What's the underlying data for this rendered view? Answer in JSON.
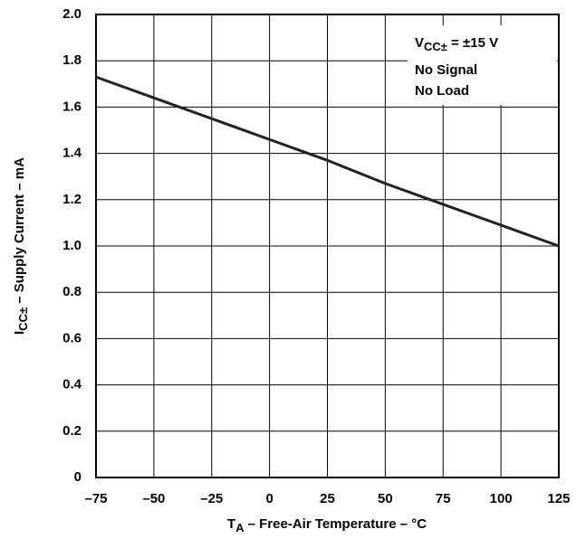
{
  "chart_data": {
    "type": "line",
    "xlabel": {
      "main": "T",
      "sub": "A",
      "rest": " – Free-Air Temperature – °C"
    },
    "ylabel": {
      "main": "I",
      "sub": "CC±",
      "rest": " – Supply Current – mA"
    },
    "annotations": [
      {
        "main": "V",
        "sub": "CC±",
        "rest": " = ±15 V"
      },
      "No Signal",
      "No Load"
    ],
    "x": [
      -75,
      -50,
      -25,
      0,
      25,
      50,
      75,
      100,
      125
    ],
    "series": [
      {
        "color": "#222222",
        "values": [
          1.73,
          1.64,
          1.55,
          1.46,
          1.37,
          1.27,
          1.18,
          1.09,
          1.0
        ]
      }
    ],
    "xlim": [
      -75,
      125
    ],
    "xticks": [
      {
        "value": -75,
        "label": "–75"
      },
      {
        "value": -50,
        "label": "–50"
      },
      {
        "value": -25,
        "label": "–25"
      },
      0,
      25,
      50,
      75,
      100,
      125
    ],
    "ylim": [
      0,
      2
    ],
    "yticks": [
      0,
      0.2,
      0.4,
      0.6,
      0.8,
      {
        "value": 1,
        "label": "1.0"
      },
      1.2,
      1.4,
      1.6,
      1.8,
      {
        "value": 2,
        "label": "2.0"
      }
    ],
    "grid": true
  }
}
